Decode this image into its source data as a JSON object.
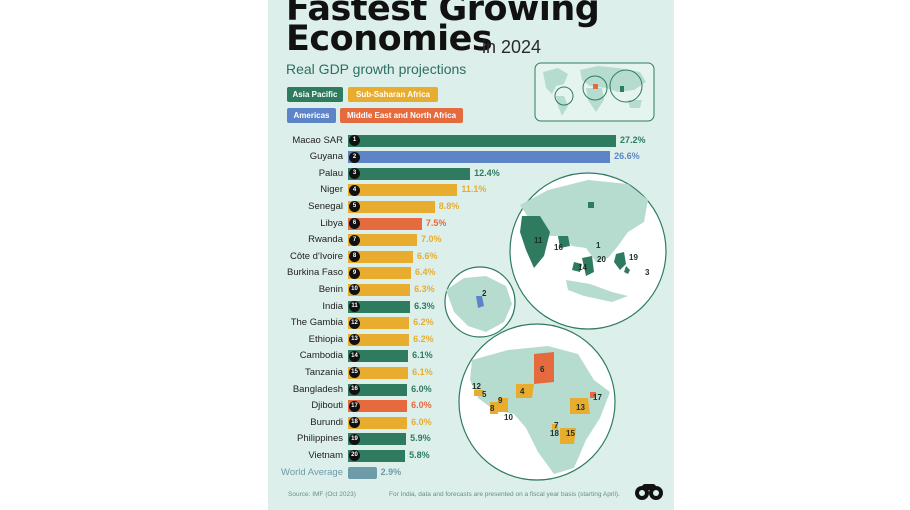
{
  "title": {
    "line1": "Fastest Growing",
    "line2": "Economies",
    "suffix": "in 2024",
    "subtitle": "Real GDP growth projections"
  },
  "legend": [
    {
      "label": "Asia Pacific",
      "color": "#2e7b5f"
    },
    {
      "label": "Sub-Saharan Africa",
      "color": "#e8ad2f"
    },
    {
      "label": "Americas",
      "color": "#5d84c7"
    },
    {
      "label": "Middle East and North Africa",
      "color": "#e56b3e"
    }
  ],
  "chart_data": {
    "type": "bar",
    "orientation": "horizontal",
    "unit": "%",
    "categories": [
      "Macao SAR",
      "Guyana",
      "Palau",
      "Niger",
      "Senegal",
      "Libya",
      "Rwanda",
      "Côte d'Ivoire",
      "Burkina Faso",
      "Benin",
      "India",
      "The Gambia",
      "Ethiopia",
      "Cambodia",
      "Tanzania",
      "Bangladesh",
      "Djibouti",
      "Burundi",
      "Philippines",
      "Vietnam"
    ],
    "ranks": [
      "1",
      "2",
      "3",
      "4",
      "5",
      "6",
      "7",
      "8",
      "9",
      "10",
      "11",
      "12",
      "13",
      "14",
      "15",
      "16",
      "17",
      "18",
      "19",
      "20"
    ],
    "values": [
      27.2,
      26.6,
      12.4,
      11.1,
      8.8,
      7.5,
      7.0,
      6.6,
      6.4,
      6.3,
      6.3,
      6.2,
      6.2,
      6.1,
      6.1,
      6.0,
      6.0,
      6.0,
      5.9,
      5.8
    ],
    "value_labels": [
      "27.2%",
      "26.6%",
      "12.4%",
      "11.1%",
      "8.8%",
      "7.5%",
      "7.0%",
      "6.6%",
      "6.4%",
      "6.3%",
      "6.3%",
      "6.2%",
      "6.2%",
      "6.1%",
      "6.1%",
      "6.0%",
      "6.0%",
      "6.0%",
      "5.9%",
      "5.8%"
    ],
    "regions": [
      "Asia Pacific",
      "Americas",
      "Asia Pacific",
      "Sub-Saharan Africa",
      "Sub-Saharan Africa",
      "Middle East and North Africa",
      "Sub-Saharan Africa",
      "Sub-Saharan Africa",
      "Sub-Saharan Africa",
      "Sub-Saharan Africa",
      "Asia Pacific",
      "Sub-Saharan Africa",
      "Sub-Saharan Africa",
      "Asia Pacific",
      "Sub-Saharan Africa",
      "Asia Pacific",
      "Middle East and North Africa",
      "Sub-Saharan Africa",
      "Asia Pacific",
      "Asia Pacific"
    ],
    "world_average": {
      "label": "World Average",
      "value": 2.9,
      "value_label": "2.9%",
      "color": "#6e9ba8"
    },
    "xlim": [
      0,
      27.2
    ]
  },
  "region_colors": {
    "Asia Pacific": "#2e7b5f",
    "Americas": "#5d84c7",
    "Sub-Saharan Africa": "#e8ad2f",
    "Middle East and North Africa": "#e56b3e"
  },
  "maps": {
    "asia_numbers": [
      "11",
      "16",
      "1",
      "20",
      "14",
      "19",
      "3"
    ],
    "americas_numbers": [
      "2"
    ],
    "africa_numbers": [
      "6",
      "12",
      "5",
      "4",
      "9",
      "8",
      "10",
      "17",
      "13",
      "7",
      "18",
      "15"
    ]
  },
  "footer": {
    "source": "Source: IMF (Oct 2023)",
    "note": "For India, data and forecasts are presented on a fiscal year basis (starting April)."
  },
  "icons": {
    "logo": "binoculars-logo-icon",
    "world": "world-map-icon"
  }
}
